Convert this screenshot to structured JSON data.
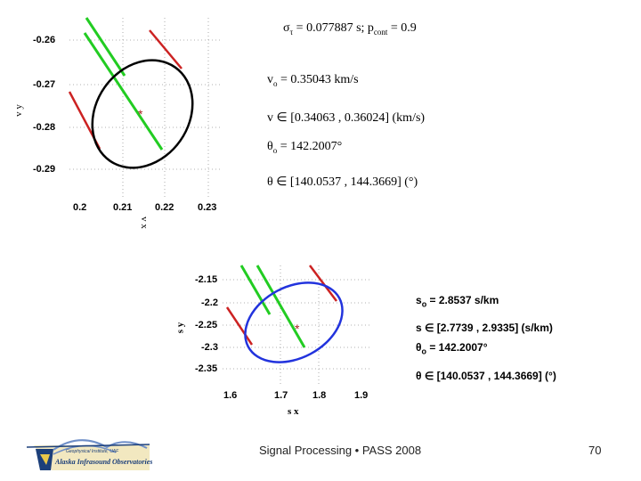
{
  "top_plot": {
    "y_ticks": [
      "-0.26",
      "-0.27",
      "-0.28",
      "-0.29"
    ],
    "x_ticks": [
      "0.2",
      "0.21",
      "0.22",
      "0.23"
    ],
    "y_label": "v y",
    "x_label": "v x",
    "equations": [
      {
        "sym": "σ",
        "sub": "τ",
        "text": " = 0.077887 s;  p",
        "sub2": "cont",
        "text2": " = 0.9"
      },
      {
        "sym": "v",
        "sub": "o",
        "text": " = 0.35043 km/s"
      },
      {
        "sym": "v",
        "sub": "",
        "text": " ∈ [0.34063 , 0.36024] (km/s)"
      },
      {
        "sym": "θ",
        "sub": "o",
        "text": " = 142.2007°"
      },
      {
        "sym": "θ",
        "sub": "",
        "text": " ∈ [140.0537 , 144.3669] (°)"
      }
    ],
    "colors": {
      "ellipse": "#000000",
      "green": "#22cc22",
      "red": "#cc2222",
      "center": "#aa2222"
    }
  },
  "bottom_plot": {
    "y_ticks": [
      "-2.15",
      "-2.2",
      "-2.25",
      "-2.3",
      "-2.35"
    ],
    "x_ticks": [
      "1.6",
      "1.7",
      "1.8",
      "1.9"
    ],
    "y_label": "s y",
    "x_label": "s x",
    "equations": [
      {
        "sym": "s",
        "sub": "o",
        "text": " = 2.8537 s/km"
      },
      {
        "sym": "s",
        "sub": "",
        "text": " ∈ [2.7739 , 2.9335] (s/km)"
      },
      {
        "sym": "θ",
        "sub": "o",
        "text": " = 142.2007°"
      },
      {
        "sym": "θ",
        "sub": "",
        "text": " ∈ [140.0537 , 144.3669] (°)"
      }
    ],
    "colors": {
      "ellipse": "#2233dd",
      "green": "#22cc22",
      "red": "#cc2222",
      "center": "#aa2222"
    }
  },
  "footer": {
    "logo_line1": "Geophysical Institute, UAF",
    "logo_line2": "Alaska Infrasound Observatories",
    "title": "Signal Processing • PASS 2008",
    "page_number": "70"
  }
}
